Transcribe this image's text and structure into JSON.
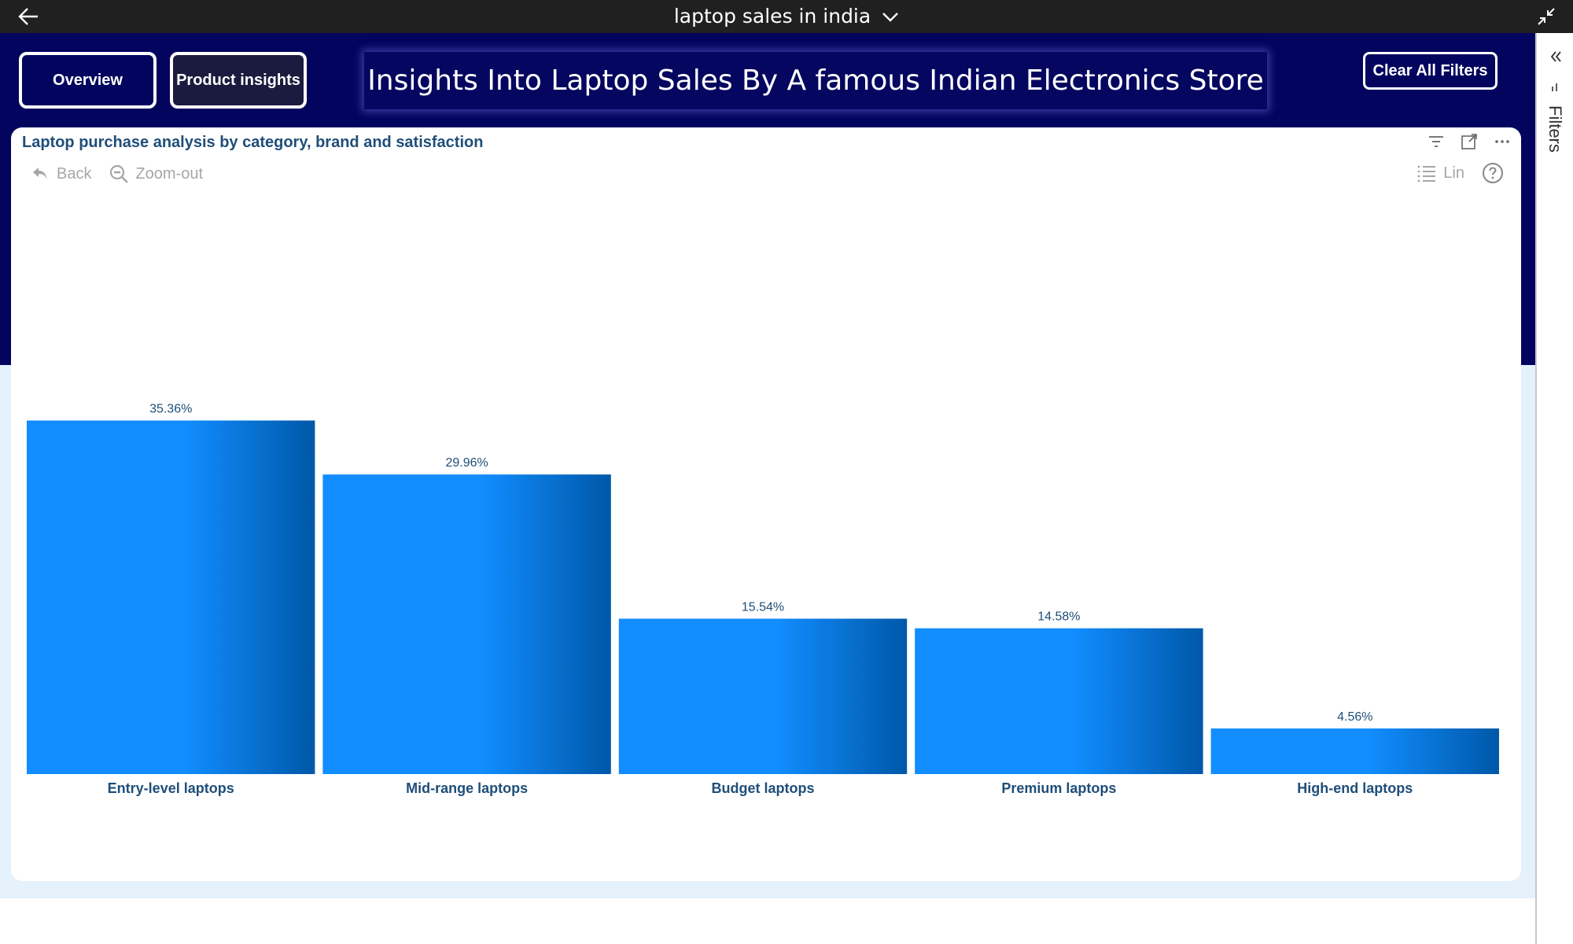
{
  "topbar": {
    "title": "laptop sales in india"
  },
  "nav": {
    "overview_label": "Overview",
    "product_label": "Product insights",
    "banner": "Insights Into Laptop Sales By A famous Indian Electronics Store",
    "clear_label": "Clear All Filters"
  },
  "card": {
    "title": "Laptop purchase analysis by category, brand and satisfaction",
    "back_label": "Back",
    "zoom_label": "Zoom-out",
    "lin_label": "Lin"
  },
  "filters": {
    "label": "Filters"
  },
  "colors": {
    "navy": "#02045e",
    "bar_light": "#118dff",
    "bar_dark": "#0058a8",
    "label_text": "#1f4e79"
  },
  "chart_data": {
    "type": "bar",
    "title": "Laptop purchase analysis by category, brand and satisfaction",
    "categories": [
      "Entry-level laptops",
      "Mid-range laptops",
      "Budget laptops",
      "Premium laptops",
      "High-end laptops"
    ],
    "values": [
      35.36,
      29.96,
      15.54,
      14.58,
      4.56
    ],
    "value_labels": [
      "35.36%",
      "29.96%",
      "15.54%",
      "14.58%",
      "4.56%"
    ],
    "unit": "%",
    "ylim": [
      0,
      45
    ],
    "grid": false,
    "legend": "none"
  }
}
